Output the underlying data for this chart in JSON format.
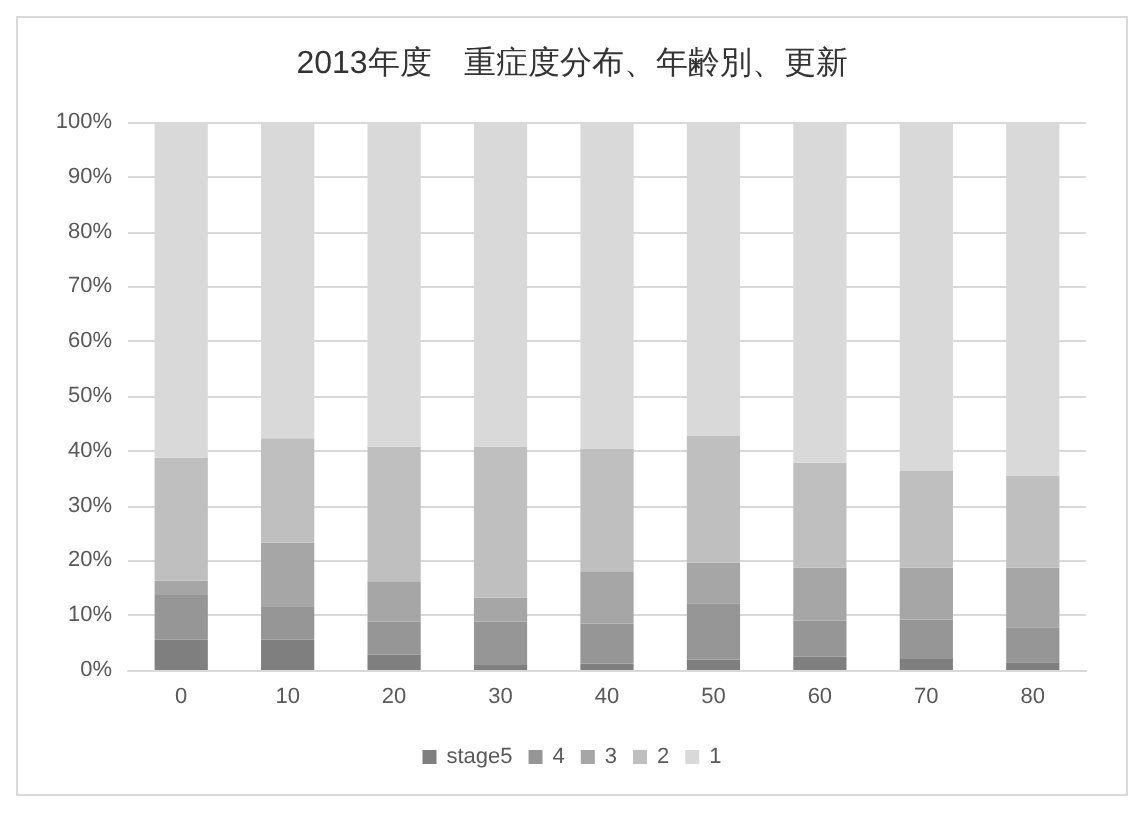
{
  "chart_data": {
    "type": "bar",
    "title": "2013年度　重症度分布、年齢別、更新",
    "categories": [
      "0",
      "10",
      "20",
      "30",
      "40",
      "50",
      "60",
      "70",
      "80"
    ],
    "stacked": true,
    "series": [
      {
        "name": "stage5",
        "color": "#7f7f7f",
        "values": [
          5.5,
          5.5,
          2.8,
          0.9,
          1.2,
          1.9,
          2.4,
          2.0,
          1.4
        ]
      },
      {
        "name": "4",
        "color": "#969696",
        "values": [
          8.2,
          6.0,
          6.0,
          7.9,
          7.3,
          10.3,
          6.6,
          7.2,
          6.4
        ]
      },
      {
        "name": "3",
        "color": "#a6a6a6",
        "values": [
          2.6,
          11.7,
          7.4,
          4.4,
          9.5,
          7.4,
          9.7,
          9.5,
          10.9
        ]
      },
      {
        "name": "2",
        "color": "#bfbfbf",
        "values": [
          22.5,
          19.1,
          24.6,
          27.6,
          22.4,
          23.1,
          19.1,
          17.6,
          16.7
        ]
      },
      {
        "name": "1",
        "color": "#d9d9d9",
        "values": [
          61.2,
          57.7,
          59.2,
          59.2,
          59.6,
          57.3,
          62.2,
          63.7,
          64.6
        ]
      }
    ],
    "ylim": [
      0,
      100
    ],
    "yticks": [
      {
        "value": 0,
        "label": "0%"
      },
      {
        "value": 10,
        "label": "10%"
      },
      {
        "value": 20,
        "label": "20%"
      },
      {
        "value": 30,
        "label": "30%"
      },
      {
        "value": 40,
        "label": "40%"
      },
      {
        "value": 50,
        "label": "50%"
      },
      {
        "value": 60,
        "label": "60%"
      },
      {
        "value": 70,
        "label": "70%"
      },
      {
        "value": 80,
        "label": "80%"
      },
      {
        "value": 90,
        "label": "90%"
      },
      {
        "value": 100,
        "label": "100%"
      }
    ],
    "grid": "y",
    "legend": "bottom"
  }
}
